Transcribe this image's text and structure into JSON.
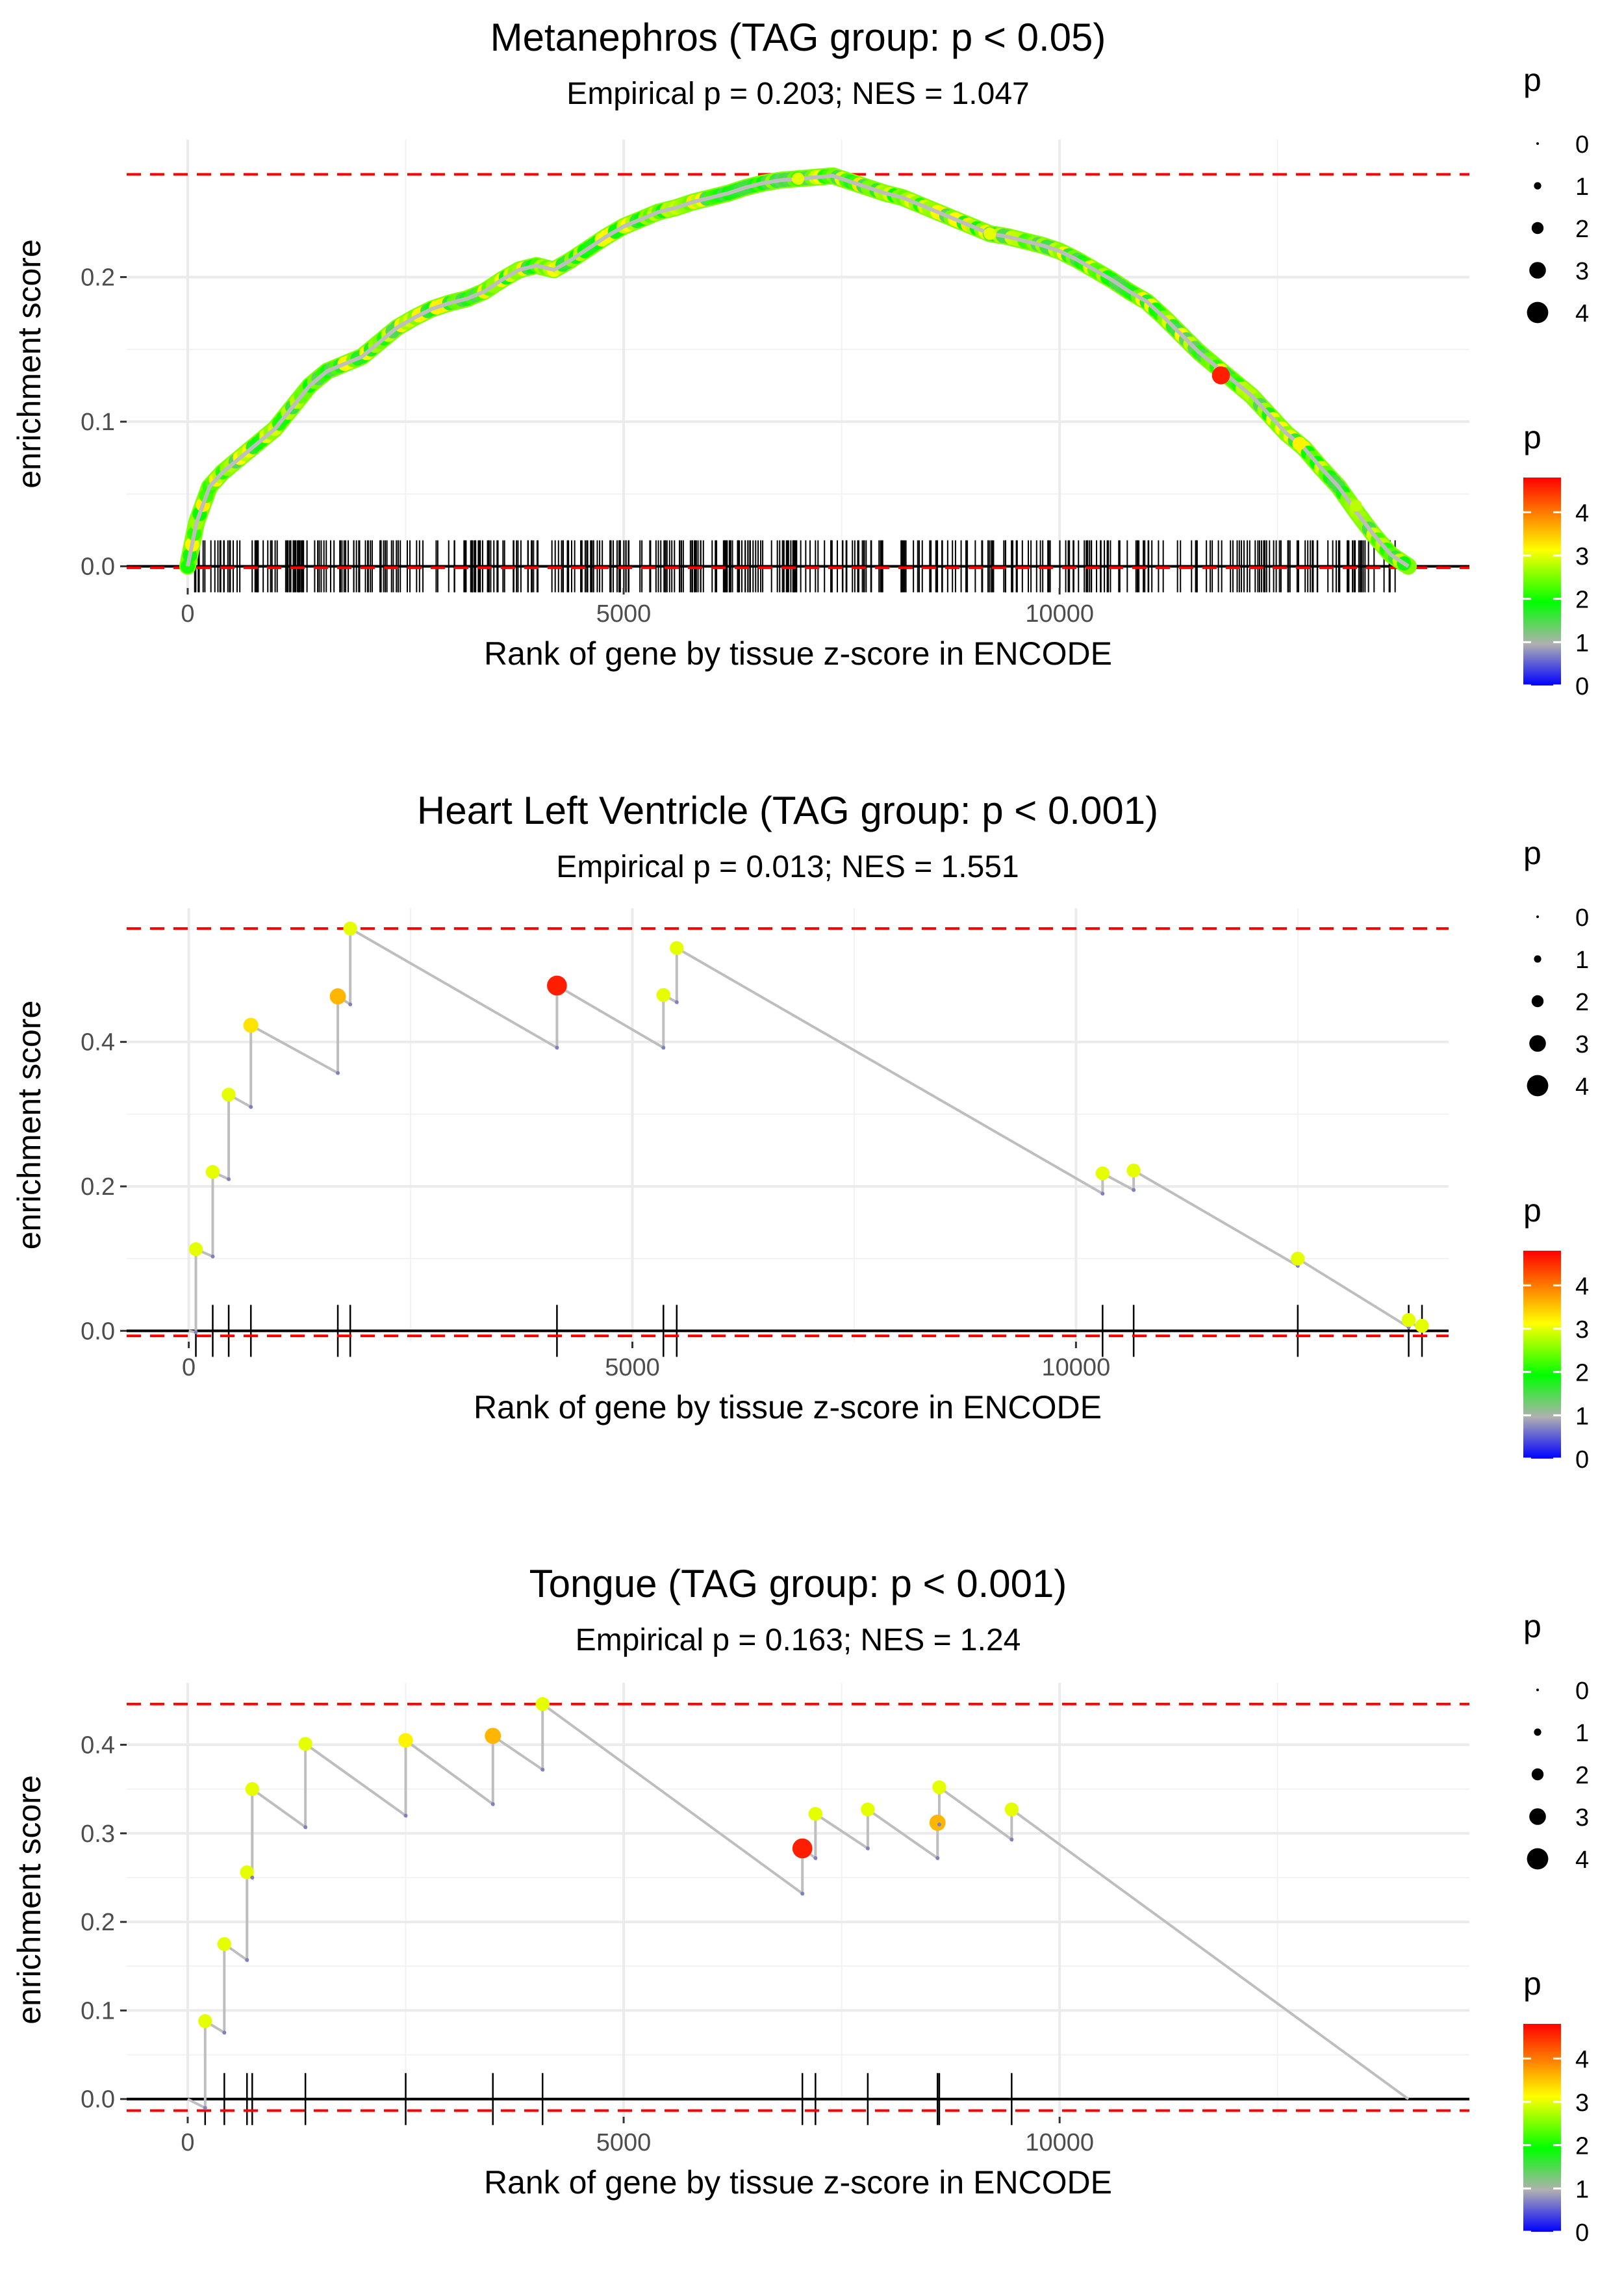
{
  "chart_data": [
    {
      "type": "line",
      "title": "Metanephros (TAG group: p < 0.05)",
      "subtitle": "Empirical p = 0.203; NES = 1.047",
      "xlabel": "Rank of gene by tissue z-score in ENCODE",
      "ylabel": "enrichment score",
      "xlim": [
        -700,
        14700
      ],
      "ylim": [
        -0.015,
        0.295
      ],
      "x_ticks": [
        0,
        5000,
        10000
      ],
      "x_tick_labels": [
        "0",
        "5000",
        "10000"
      ],
      "y_ticks": [
        0,
        0.1,
        0.2
      ],
      "y_tick_labels": [
        "0.0",
        "0.1",
        "0.2"
      ],
      "max_es": 0.271,
      "min_es": -0.001,
      "dense": true,
      "n_hits": 430,
      "x_max_rank": 14000,
      "es_curve": [
        {
          "x": 0,
          "y": 0.0
        },
        {
          "x": 100,
          "y": 0.03
        },
        {
          "x": 250,
          "y": 0.055
        },
        {
          "x": 400,
          "y": 0.065
        },
        {
          "x": 600,
          "y": 0.075
        },
        {
          "x": 800,
          "y": 0.085
        },
        {
          "x": 1000,
          "y": 0.095
        },
        {
          "x": 1200,
          "y": 0.11
        },
        {
          "x": 1400,
          "y": 0.125
        },
        {
          "x": 1600,
          "y": 0.135
        },
        {
          "x": 1800,
          "y": 0.14
        },
        {
          "x": 2000,
          "y": 0.145
        },
        {
          "x": 2200,
          "y": 0.155
        },
        {
          "x": 2400,
          "y": 0.165
        },
        {
          "x": 2600,
          "y": 0.172
        },
        {
          "x": 2800,
          "y": 0.178
        },
        {
          "x": 3000,
          "y": 0.182
        },
        {
          "x": 3200,
          "y": 0.185
        },
        {
          "x": 3400,
          "y": 0.19
        },
        {
          "x": 3600,
          "y": 0.198
        },
        {
          "x": 3800,
          "y": 0.205
        },
        {
          "x": 4000,
          "y": 0.208
        },
        {
          "x": 4200,
          "y": 0.205
        },
        {
          "x": 4400,
          "y": 0.212
        },
        {
          "x": 4600,
          "y": 0.22
        },
        {
          "x": 4800,
          "y": 0.228
        },
        {
          "x": 5000,
          "y": 0.235
        },
        {
          "x": 5200,
          "y": 0.24
        },
        {
          "x": 5400,
          "y": 0.245
        },
        {
          "x": 5600,
          "y": 0.248
        },
        {
          "x": 5800,
          "y": 0.252
        },
        {
          "x": 6000,
          "y": 0.255
        },
        {
          "x": 6200,
          "y": 0.258
        },
        {
          "x": 6400,
          "y": 0.262
        },
        {
          "x": 6600,
          "y": 0.265
        },
        {
          "x": 6800,
          "y": 0.267
        },
        {
          "x": 7000,
          "y": 0.268
        },
        {
          "x": 7200,
          "y": 0.269
        },
        {
          "x": 7400,
          "y": 0.27
        },
        {
          "x": 7600,
          "y": 0.266
        },
        {
          "x": 7800,
          "y": 0.262
        },
        {
          "x": 8000,
          "y": 0.258
        },
        {
          "x": 8200,
          "y": 0.255
        },
        {
          "x": 8400,
          "y": 0.25
        },
        {
          "x": 8600,
          "y": 0.245
        },
        {
          "x": 8800,
          "y": 0.24
        },
        {
          "x": 9000,
          "y": 0.235
        },
        {
          "x": 9200,
          "y": 0.23
        },
        {
          "x": 9400,
          "y": 0.228
        },
        {
          "x": 9600,
          "y": 0.225
        },
        {
          "x": 9800,
          "y": 0.222
        },
        {
          "x": 10000,
          "y": 0.218
        },
        {
          "x": 10200,
          "y": 0.212
        },
        {
          "x": 10400,
          "y": 0.205
        },
        {
          "x": 10600,
          "y": 0.198
        },
        {
          "x": 10800,
          "y": 0.19
        },
        {
          "x": 11000,
          "y": 0.183
        },
        {
          "x": 11200,
          "y": 0.172
        },
        {
          "x": 11400,
          "y": 0.16
        },
        {
          "x": 11600,
          "y": 0.148
        },
        {
          "x": 11800,
          "y": 0.138
        },
        {
          "x": 12000,
          "y": 0.128
        },
        {
          "x": 12200,
          "y": 0.118
        },
        {
          "x": 12400,
          "y": 0.105
        },
        {
          "x": 12600,
          "y": 0.092
        },
        {
          "x": 12800,
          "y": 0.082
        },
        {
          "x": 13000,
          "y": 0.068
        },
        {
          "x": 13200,
          "y": 0.055
        },
        {
          "x": 13400,
          "y": 0.038
        },
        {
          "x": 13600,
          "y": 0.022
        },
        {
          "x": 13800,
          "y": 0.008
        },
        {
          "x": 14000,
          "y": 0.0
        }
      ],
      "highlight_points": [
        {
          "x": 7000,
          "y": 0.268,
          "p": 3.0
        },
        {
          "x": 9200,
          "y": 0.23,
          "p": 3.0
        },
        {
          "x": 11850,
          "y": 0.132,
          "p": 4.6
        },
        {
          "x": 12750,
          "y": 0.085,
          "p": 3.2
        },
        {
          "x": 13400,
          "y": 0.042,
          "p": 2.8
        }
      ]
    },
    {
      "type": "line",
      "title": "Heart Left Ventricle (TAG group: p < 0.001)",
      "subtitle": "Empirical p = 0.013; NES = 1.551",
      "xlabel": "Rank of gene by tissue z-score in ENCODE",
      "ylabel": "enrichment score",
      "xlim": [
        -700,
        14200
      ],
      "ylim": [
        -0.015,
        0.585
      ],
      "x_ticks": [
        0,
        5000,
        10000
      ],
      "x_tick_labels": [
        "0",
        "5000",
        "10000"
      ],
      "y_ticks": [
        0,
        0.2,
        0.4
      ],
      "y_tick_labels": [
        "0.0",
        "0.2",
        "0.4"
      ],
      "max_es": 0.557,
      "min_es": -0.007,
      "dense": false,
      "x_max_rank": 13900,
      "hits": [
        {
          "x": 80,
          "y_before": -0.002,
          "y": 0.113,
          "p": 3.0
        },
        {
          "x": 270,
          "y_before": 0.103,
          "y": 0.22,
          "p": 3.0
        },
        {
          "x": 450,
          "y_before": 0.21,
          "y": 0.327,
          "p": 3.0
        },
        {
          "x": 700,
          "y_before": 0.31,
          "y": 0.423,
          "p": 3.3
        },
        {
          "x": 1680,
          "y_before": 0.357,
          "y": 0.463,
          "p": 3.6
        },
        {
          "x": 1820,
          "y_before": 0.452,
          "y": 0.557,
          "p": 3.0
        },
        {
          "x": 4150,
          "y_before": 0.392,
          "y": 0.478,
          "p": 4.6
        },
        {
          "x": 5350,
          "y_before": 0.392,
          "y": 0.465,
          "p": 3.0
        },
        {
          "x": 5500,
          "y_before": 0.455,
          "y": 0.53,
          "p": 3.0
        },
        {
          "x": 10300,
          "y_before": 0.19,
          "y": 0.218,
          "p": 3.0
        },
        {
          "x": 10650,
          "y_before": 0.195,
          "y": 0.222,
          "p": 3.0
        },
        {
          "x": 12500,
          "y_before": 0.09,
          "y": 0.1,
          "p": 3.0
        },
        {
          "x": 13750,
          "y_before": 0.005,
          "y": 0.015,
          "p": 3.0
        },
        {
          "x": 13900,
          "y_before": 0.0,
          "y": 0.007,
          "p": 3.0
        }
      ]
    },
    {
      "type": "line",
      "title": "Tongue (TAG group: p < 0.001)",
      "subtitle": "Empirical p = 0.163; NES = 1.24",
      "xlabel": "Rank of gene by tissue z-score in ENCODE",
      "ylabel": "enrichment score",
      "xlim": [
        -700,
        14700
      ],
      "ylim": [
        -0.02,
        0.47
      ],
      "x_ticks": [
        0,
        5000,
        10000
      ],
      "x_tick_labels": [
        "0",
        "5000",
        "10000"
      ],
      "y_ticks": [
        0,
        0.1,
        0.2,
        0.3,
        0.4
      ],
      "y_tick_labels": [
        "0.0",
        "0.1",
        "0.2",
        "0.3",
        "0.4"
      ],
      "max_es": 0.446,
      "min_es": -0.013,
      "dense": false,
      "x_max_rank": 14000,
      "hits": [
        {
          "x": 200,
          "y_before": -0.01,
          "y": 0.088,
          "p": 3.0
        },
        {
          "x": 420,
          "y_before": 0.075,
          "y": 0.175,
          "p": 3.0
        },
        {
          "x": 680,
          "y_before": 0.157,
          "y": 0.256,
          "p": 3.0
        },
        {
          "x": 740,
          "y_before": 0.25,
          "y": 0.35,
          "p": 3.0
        },
        {
          "x": 1350,
          "y_before": 0.307,
          "y": 0.401,
          "p": 3.0
        },
        {
          "x": 2500,
          "y_before": 0.32,
          "y": 0.405,
          "p": 3.2
        },
        {
          "x": 3500,
          "y_before": 0.333,
          "y": 0.41,
          "p": 3.6
        },
        {
          "x": 4070,
          "y_before": 0.372,
          "y": 0.446,
          "p": 3.0
        },
        {
          "x": 7050,
          "y_before": 0.232,
          "y": 0.283,
          "p": 4.6
        },
        {
          "x": 7200,
          "y_before": 0.272,
          "y": 0.322,
          "p": 3.0
        },
        {
          "x": 7800,
          "y_before": 0.283,
          "y": 0.327,
          "p": 3.0
        },
        {
          "x": 8600,
          "y_before": 0.272,
          "y": 0.312,
          "p": 3.6
        },
        {
          "x": 8620,
          "y_before": 0.31,
          "y": 0.352,
          "p": 3.0
        },
        {
          "x": 9450,
          "y_before": 0.293,
          "y": 0.327,
          "p": 3.0
        }
      ]
    }
  ],
  "legends": {
    "size_title": "p",
    "size_labels": [
      "0",
      "1",
      "2",
      "3",
      "4"
    ],
    "color_title": "p",
    "color_labels": [
      "0",
      "1",
      "2",
      "3",
      "4"
    ],
    "color_min": 0,
    "color_max": 4.8
  },
  "colors": {
    "threshold_line": "#ff0000",
    "curve": "#bebebe",
    "hit_tick": "#000000",
    "gradient": [
      "#0000ff",
      "#b0b0b0",
      "#00ff00",
      "#ffff00",
      "#ff0000"
    ]
  }
}
